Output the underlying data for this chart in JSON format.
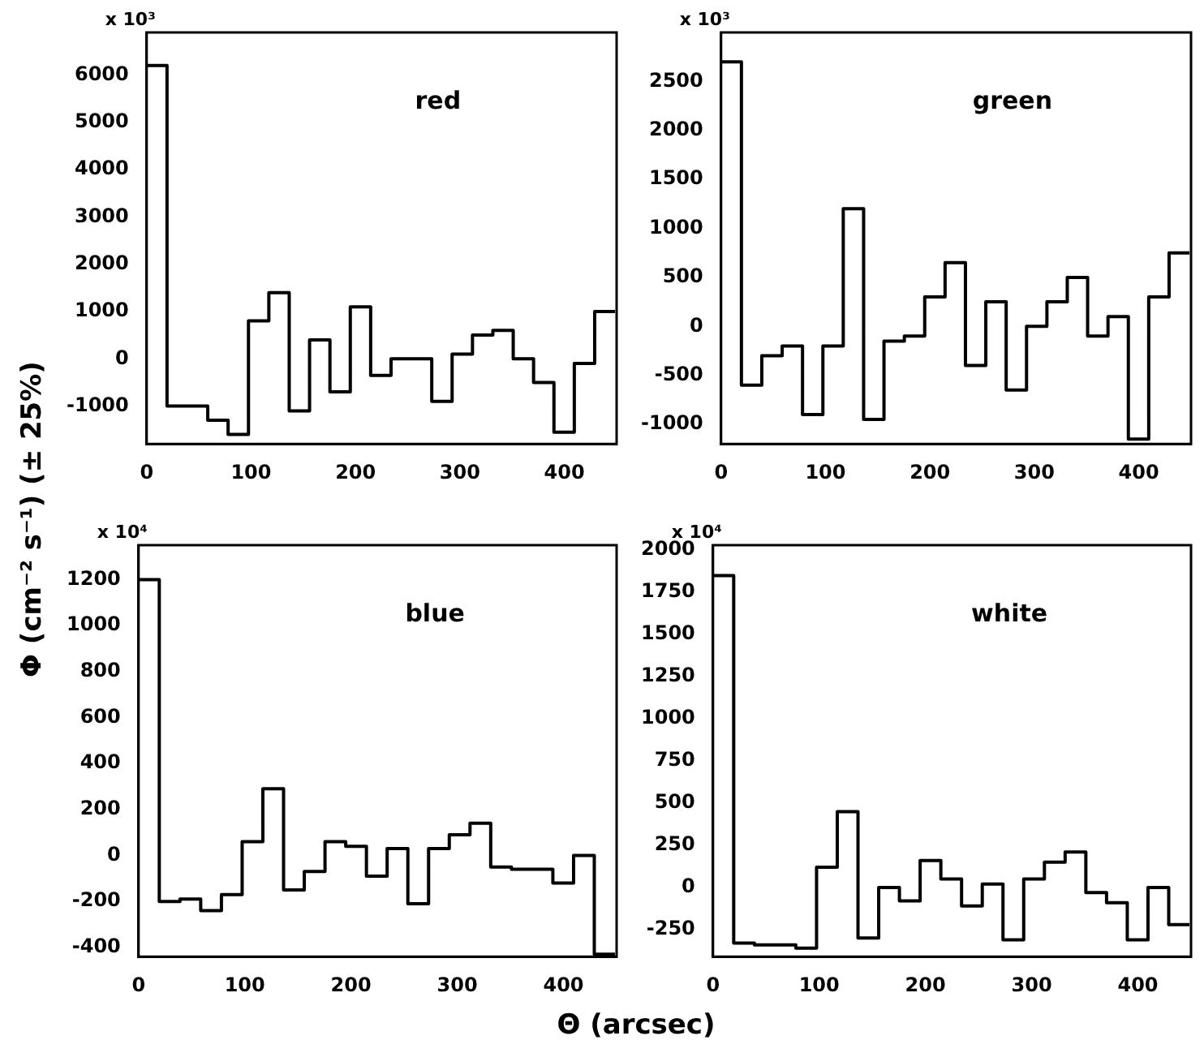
{
  "chart_data": [
    {
      "type": "histogram",
      "annotations": [
        "x 10³",
        "red"
      ],
      "ylabel": "Φ (cm⁻² s⁻¹) (± 25%)",
      "color": "#000000",
      "bins": [
        0,
        19.5,
        39,
        58.5,
        78,
        97.5,
        117,
        136.5,
        156,
        175.5,
        195,
        214.5,
        234,
        253.5,
        273,
        292.5,
        312,
        331.5,
        351,
        370.5,
        390,
        409.5,
        429,
        448.5
      ],
      "values": [
        6200,
        -1000,
        -1000,
        -1300,
        -1600,
        800,
        1400,
        -1100,
        400,
        -700,
        1100,
        -350,
        0,
        0,
        -900,
        100,
        500,
        600,
        0,
        -500,
        -1550,
        -100,
        1000
      ],
      "xlim": [
        0,
        450
      ],
      "xticks": [
        0,
        100,
        200,
        300,
        400
      ],
      "ylim": [
        -1800,
        6900
      ],
      "yticks": [
        -1000,
        0,
        1000,
        2000,
        3000,
        4000,
        5000,
        6000
      ],
      "grid": false,
      "legend": false
    },
    {
      "type": "histogram",
      "annotations": [
        "x 10³",
        "green"
      ],
      "color": "#000000",
      "bins": [
        0,
        19.5,
        39,
        58.5,
        78,
        97.5,
        117,
        136.5,
        156,
        175.5,
        195,
        214.5,
        234,
        253.5,
        273,
        292.5,
        312,
        331.5,
        351,
        370.5,
        390,
        409.5,
        429,
        448.5
      ],
      "values": [
        2700,
        -600,
        -300,
        -200,
        -900,
        -200,
        1200,
        -950,
        -150,
        -100,
        300,
        650,
        -400,
        250,
        -650,
        0,
        250,
        500,
        -100,
        100,
        -1150,
        300,
        750
      ],
      "xlim": [
        0,
        450
      ],
      "xticks": [
        0,
        100,
        200,
        300,
        400
      ],
      "ylim": [
        -1200,
        3000
      ],
      "yticks": [
        -1000,
        -500,
        0,
        500,
        1000,
        1500,
        2000,
        2500
      ],
      "grid": false,
      "legend": false
    },
    {
      "type": "histogram",
      "annotations": [
        "x 10⁴",
        "blue"
      ],
      "xlabel": "Θ (arcsec)",
      "color": "#000000",
      "bins": [
        0,
        19.5,
        39,
        58.5,
        78,
        97.5,
        117,
        136.5,
        156,
        175.5,
        195,
        214.5,
        234,
        253.5,
        273,
        292.5,
        312,
        331.5,
        351,
        370.5,
        390,
        409.5,
        429,
        448.5
      ],
      "values": [
        1200,
        -200,
        -190,
        -240,
        -170,
        60,
        290,
        -150,
        -70,
        60,
        40,
        -90,
        30,
        -210,
        30,
        90,
        140,
        -50,
        -60,
        -60,
        -120,
        0,
        -430
      ],
      "xlim": [
        0,
        450
      ],
      "xticks": [
        0,
        100,
        200,
        300,
        400
      ],
      "ylim": [
        -440,
        1350
      ],
      "yticks": [
        -400,
        -200,
        0,
        200,
        400,
        600,
        800,
        1000,
        1200
      ],
      "grid": false,
      "legend": false
    },
    {
      "type": "histogram",
      "annotations": [
        "x 10⁴",
        "white"
      ],
      "color": "#000000",
      "bins": [
        0,
        19.5,
        39,
        58.5,
        78,
        97.5,
        117,
        136.5,
        156,
        175.5,
        195,
        214.5,
        234,
        253.5,
        273,
        292.5,
        312,
        331.5,
        351,
        370.5,
        390,
        409.5,
        429,
        448.5
      ],
      "values": [
        1850,
        -330,
        -340,
        -340,
        -360,
        120,
        450,
        -300,
        0,
        -80,
        160,
        50,
        -110,
        20,
        -310,
        50,
        150,
        210,
        -30,
        -90,
        -310,
        0,
        -220
      ],
      "xlim": [
        0,
        450
      ],
      "xticks": [
        0,
        100,
        200,
        300,
        400
      ],
      "ylim": [
        -410,
        2030
      ],
      "yticks": [
        -250,
        0,
        250,
        500,
        750,
        1000,
        1250,
        1500,
        1750,
        2000
      ],
      "grid": false,
      "legend": false
    }
  ]
}
